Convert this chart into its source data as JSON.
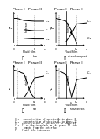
{
  "bg_color": "#ffffff",
  "panels": [
    {
      "regime": "slow",
      "label": "slow"
    },
    {
      "regime": "medium",
      "label": "at medium speed"
    },
    {
      "regime": "fast",
      "label": "fast"
    },
    {
      "regime": "instantaneous",
      "label": "instantaneous"
    }
  ],
  "circle_labels": [
    "Ⓐ",
    "Ⓑ",
    "Ⓒ",
    "Ⓓ"
  ],
  "legend_lines": [
    "Cₐ₁   concentration of species A₁ in phase I",
    "Cₐ₂   concentration of species A₂ in phase II",
    "Cᴮ   concentration of species B₂ in phase II",
    "Cᴮᴵ  Cᴮ at the interface on the phase II side",
    "n     remote from the interface",
    "Fᴮ   fluid film thickness"
  ],
  "lw": 0.7,
  "lw_border": 0.5,
  "fs_phase": 3.2,
  "fs_tick": 2.6,
  "fs_label": 2.8,
  "fs_circle": 4.0,
  "fs_legend": 2.2
}
